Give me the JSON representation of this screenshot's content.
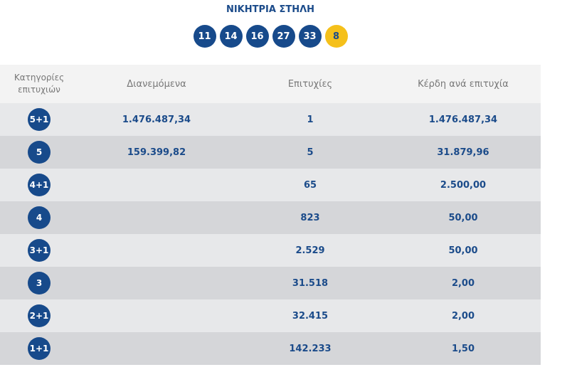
{
  "header": {
    "title": "ΝΙΚΗΤΡΙΑ ΣΤΗΛΗ",
    "numbers": [
      11,
      14,
      16,
      27,
      33
    ],
    "joker": 8
  },
  "table": {
    "columns": [
      "Κατηγορίες επιτυχιών",
      "Διανεμόμενα",
      "Επιτυχίες",
      "Κέρδη ανά επιτυχία"
    ],
    "rows": [
      {
        "category": "5+1",
        "distributed": "1.476.487,34",
        "winners": "1",
        "prize": "1.476.487,34"
      },
      {
        "category": "5",
        "distributed": "159.399,82",
        "winners": "5",
        "prize": "31.879,96"
      },
      {
        "category": "4+1",
        "winners": "65",
        "prize": "2.500,00"
      },
      {
        "category": "4",
        "winners": "823",
        "prize": "50,00"
      },
      {
        "category": "3+1",
        "winners": "2.529",
        "prize": "50,00"
      },
      {
        "category": "3",
        "winners": "31.518",
        "prize": "2,00"
      },
      {
        "category": "2+1",
        "winners": "32.415",
        "prize": "2,00"
      },
      {
        "category": "1+1",
        "winners": "142.233",
        "prize": "1,50"
      }
    ]
  }
}
